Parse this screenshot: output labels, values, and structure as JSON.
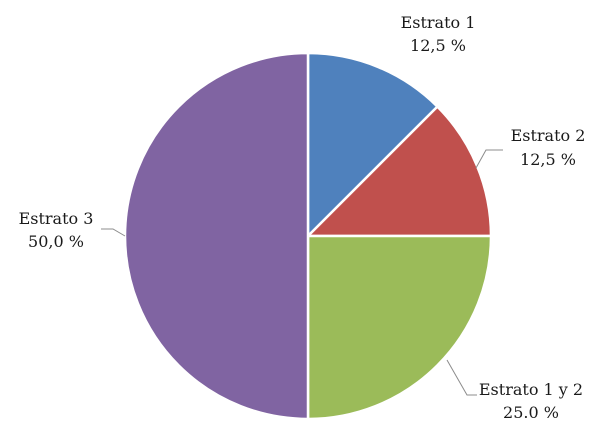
{
  "chart_data": {
    "type": "pie",
    "title": "",
    "start_angle_deg": 0,
    "direction": "clockwise",
    "slices": [
      {
        "category": "Estrato 1",
        "value": 12.5,
        "label": "12,5 %",
        "color": "#4f81bd"
      },
      {
        "category": "Estrato 2",
        "value": 12.5,
        "label": "12,5 %",
        "color": "#c0504d"
      },
      {
        "category": "Estrato 1 y 2",
        "value": 25.0,
        "label": "25.0 %",
        "color": "#9bbb59"
      },
      {
        "category": "Estrato 3",
        "value": 50.0,
        "label": "50,0 %",
        "color": "#8064a2"
      }
    ]
  }
}
